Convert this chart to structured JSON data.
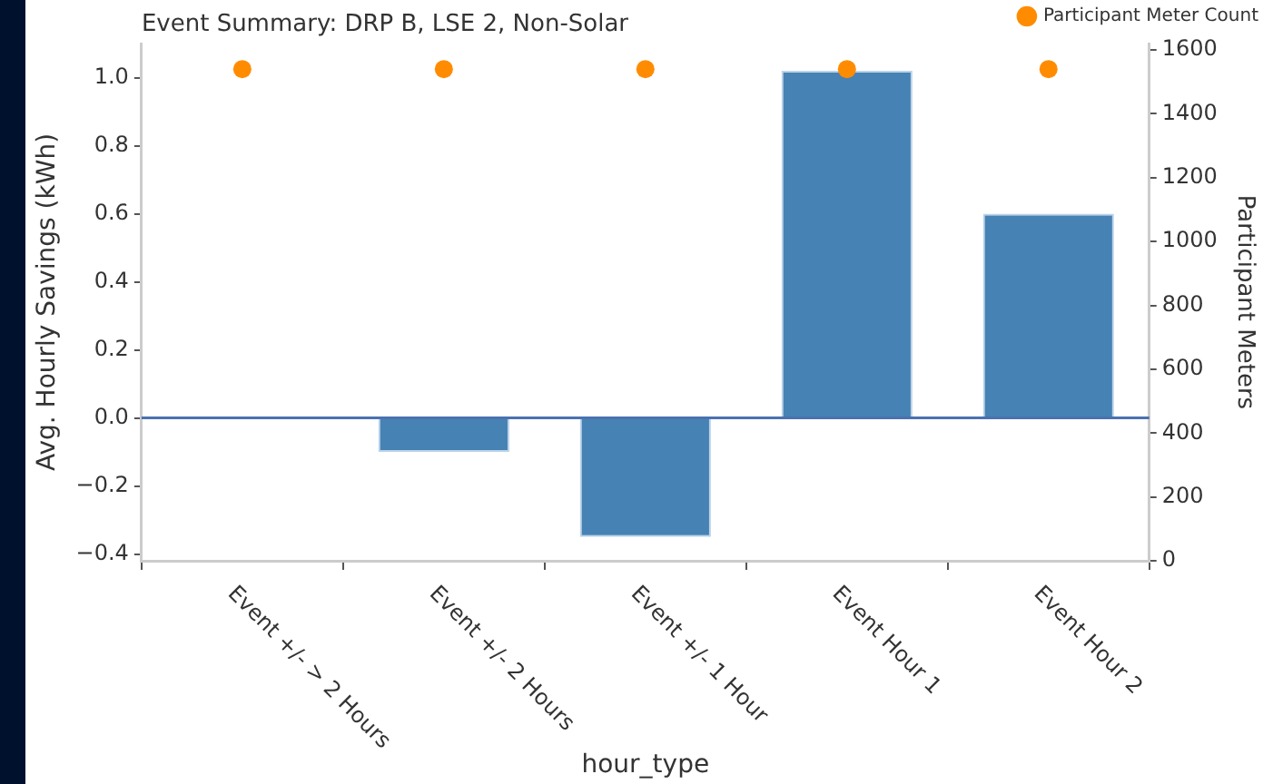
{
  "chart_data": {
    "type": "bar",
    "title": "Event Summary: DRP B, LSE 2, Non-Solar",
    "xlabel": "hour_type",
    "ylabel": "Avg. Hourly Savings (kWh)",
    "y2label": "Participant Meters",
    "categories": [
      "Event +/- > 2 Hours",
      "Event +/- 2 Hours",
      "Event +/- 1 Hour",
      "Event Hour 1",
      "Event Hour 2"
    ],
    "series": [
      {
        "color": "#4682b4",
        "values": [
          0,
          -0.1,
          -0.35,
          1.02,
          0.6
        ]
      },
      {
        "type": "scatter",
        "name": "Participant Meter Count",
        "color": "#ff8c00",
        "axis": "y2",
        "marker": "circle",
        "values": [
          1540,
          1540,
          1540,
          1540,
          1540
        ]
      }
    ],
    "ylim": [
      -0.42,
      1.1
    ],
    "yticks": [
      -0.4,
      -0.2,
      {
        "value": 0,
        "label": "0.0"
      },
      0.2,
      0.4,
      0.6,
      0.8,
      {
        "value": 1,
        "label": "1.0"
      }
    ],
    "y2lim": [
      0,
      1620
    ],
    "y2ticks": [
      0,
      200,
      400,
      600,
      800,
      1000,
      1200,
      1400,
      1600
    ],
    "ref_lines": [
      {
        "axis": "y",
        "value": 0,
        "color": "#4a72b0"
      }
    ],
    "legend": "top right",
    "grid": false
  }
}
